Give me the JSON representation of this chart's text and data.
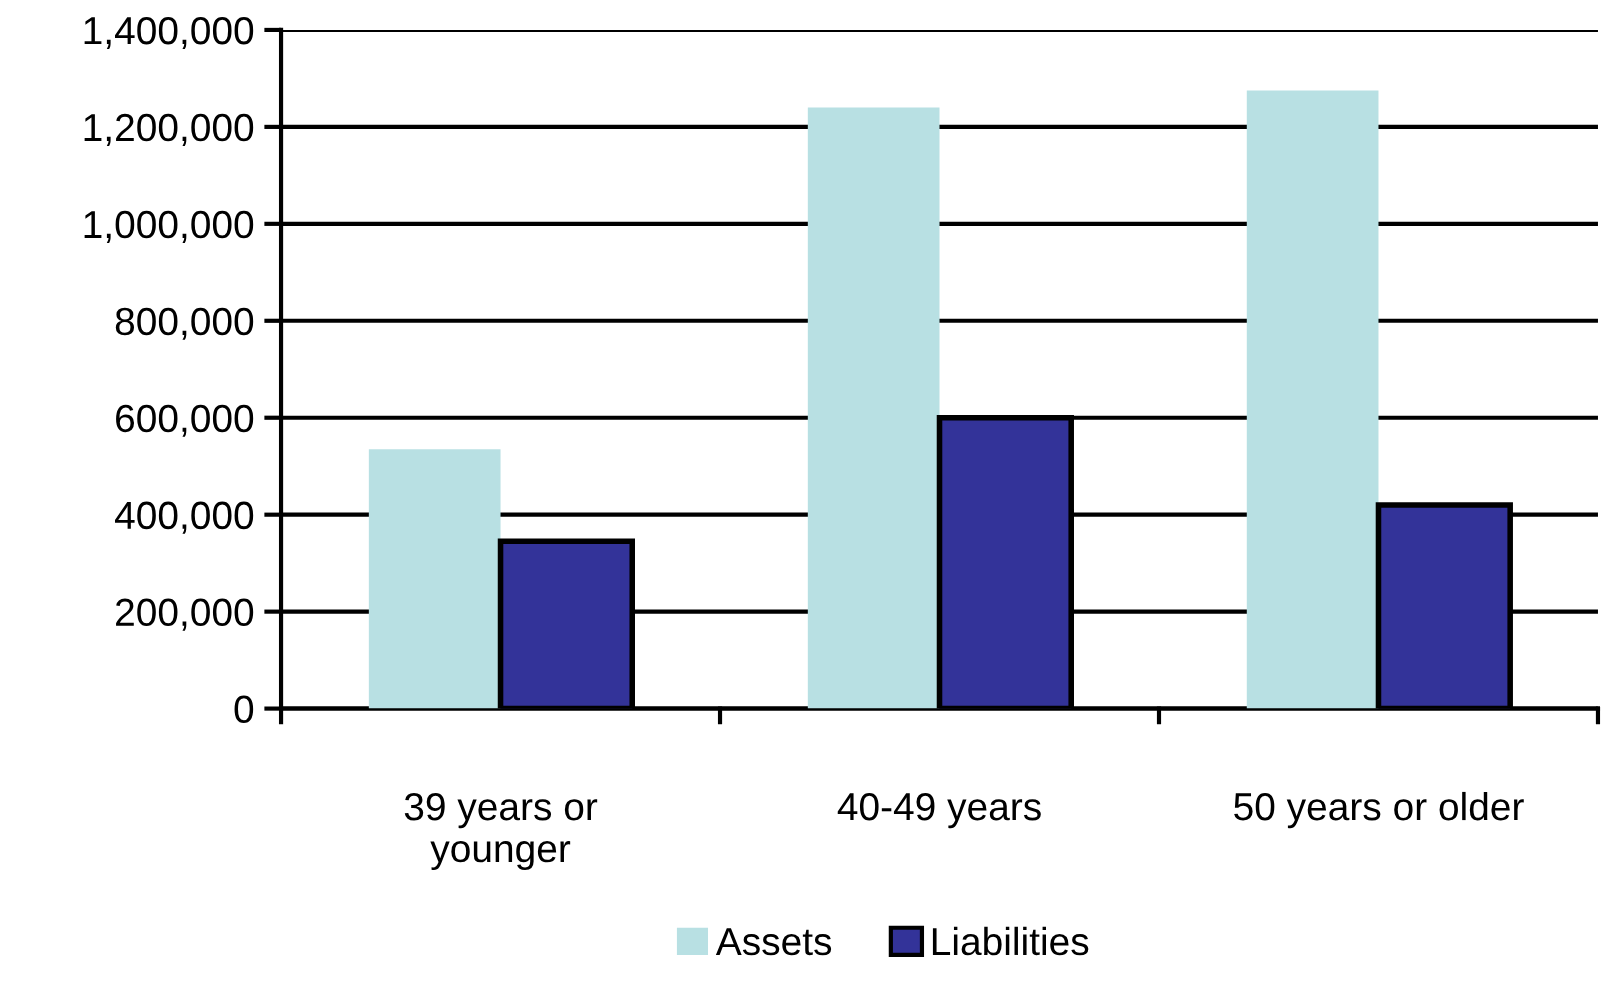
{
  "chart_data": {
    "type": "bar",
    "categories": [
      "39 years or\nyounger",
      "40-49 years",
      "50 years or older"
    ],
    "series": [
      {
        "name": "Assets",
        "color": "#b8e0e3",
        "values": [
          535000,
          1240000,
          1275000
        ]
      },
      {
        "name": "Liabilities",
        "color": "#333399",
        "values": [
          345000,
          600000,
          420000
        ]
      }
    ],
    "ylim": [
      0,
      1400000
    ],
    "yticks": [
      {
        "value": 0,
        "label": "0"
      },
      {
        "value": 200000,
        "label": "200,000"
      },
      {
        "value": 400000,
        "label": "400,000"
      },
      {
        "value": 600000,
        "label": "600,000"
      },
      {
        "value": 800000,
        "label": "800,000"
      },
      {
        "value": 1000000,
        "label": "1,000,000"
      },
      {
        "value": 1200000,
        "label": "1,200,000"
      },
      {
        "value": 1400000,
        "label": "1,400,000"
      }
    ],
    "grid": "y",
    "legend": "bottom"
  }
}
